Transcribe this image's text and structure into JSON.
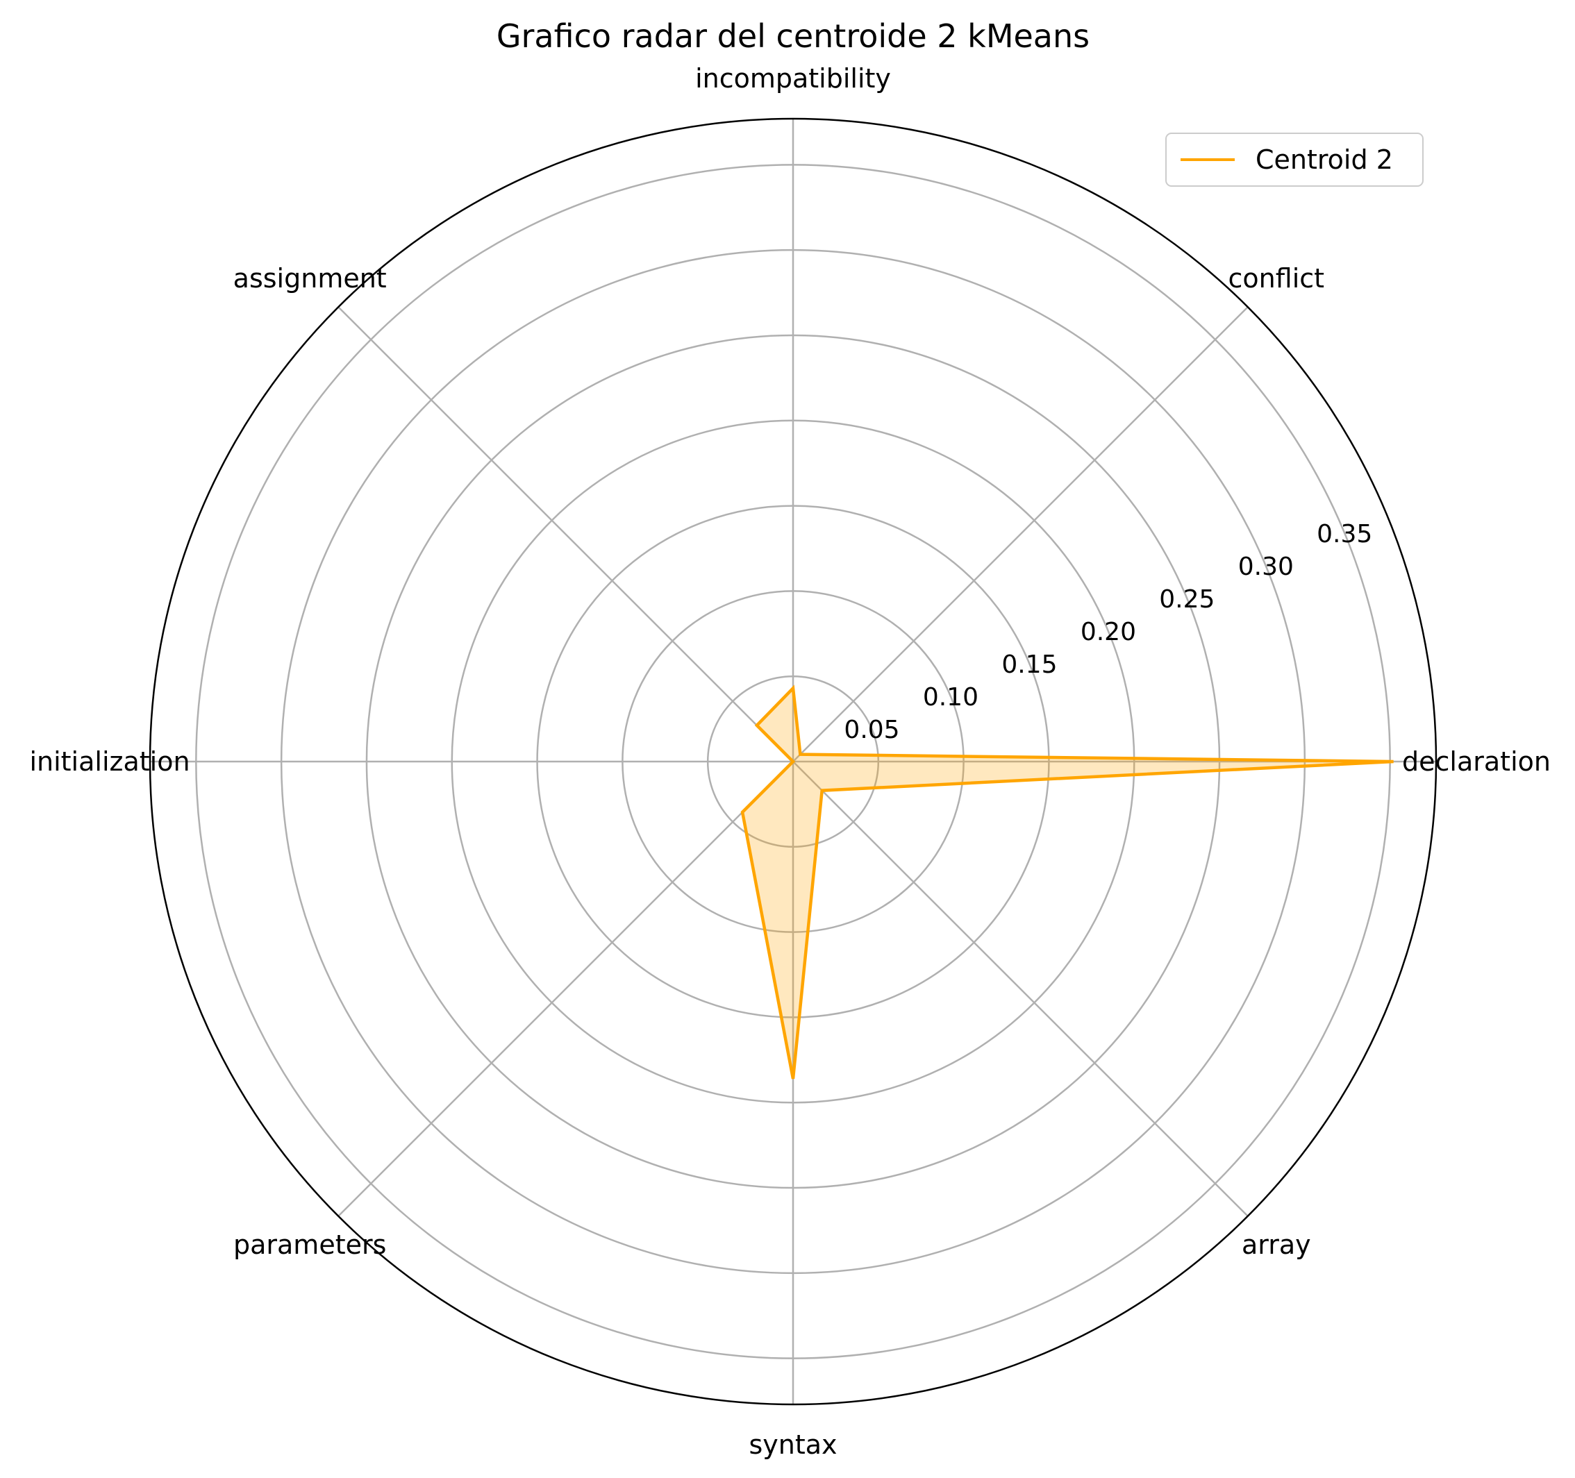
{
  "chart_data": {
    "type": "radar",
    "title": "Grafico radar del centroide 2 kMeans",
    "categories": [
      "declaration",
      "conflict",
      "incompatibility",
      "assignment",
      "initialization",
      "parameters",
      "syntax",
      "array"
    ],
    "series": [
      {
        "name": "Centroid 2",
        "values": [
          0.352,
          0.006,
          0.043,
          0.03,
          0.0,
          0.042,
          0.186,
          0.024
        ],
        "color": "#ffa500",
        "fill_color": "#ffa500"
      }
    ],
    "rlim": [
      0,
      0.377
    ],
    "rticks": [
      0.05,
      0.1,
      0.15,
      0.2,
      0.25,
      0.3,
      0.35
    ],
    "rtick_labels": [
      "0.05",
      "0.10",
      "0.15",
      "0.20",
      "0.25",
      "0.30",
      "0.35"
    ],
    "grid": true,
    "legend": "top-right",
    "colors": {
      "grid": "#b0b0b0",
      "frame": "#000000"
    }
  }
}
